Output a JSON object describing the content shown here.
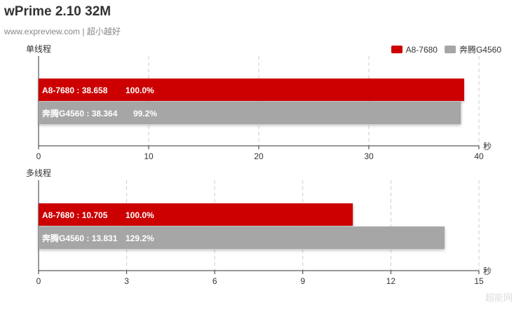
{
  "header": {
    "title": "wPrime 2.10 32M",
    "subtitle": "www.expreview.com | 超小越好"
  },
  "legend": [
    {
      "name": "A8-7680",
      "color": "#cc0000"
    },
    {
      "name": "奔腾G4560",
      "color": "#a6a6a6"
    }
  ],
  "colors": {
    "series1": "#cc0000",
    "series2": "#a6a6a6"
  },
  "chart_data": [
    {
      "type": "bar",
      "orientation": "horizontal",
      "title": "单线程",
      "xlabel": "秒",
      "xlim": [
        0,
        40
      ],
      "xticks": [
        0,
        10,
        20,
        30,
        40
      ],
      "grid": true,
      "series": [
        {
          "name": "A8-7680",
          "values": [
            38.658
          ],
          "label": "A8-7680 : 38.658",
          "percent": "100.0%"
        },
        {
          "name": "奔腾G4560",
          "values": [
            38.364
          ],
          "label": "奔腾G4560 : 38.364",
          "percent": "99.2%"
        }
      ]
    },
    {
      "type": "bar",
      "orientation": "horizontal",
      "title": "多线程",
      "xlabel": "秒",
      "xlim": [
        0,
        15
      ],
      "xticks": [
        0,
        3,
        6,
        9,
        12,
        15
      ],
      "grid": true,
      "series": [
        {
          "name": "A8-7680",
          "values": [
            10.705
          ],
          "label": "A8-7680 : 10.705",
          "percent": "100.0%"
        },
        {
          "name": "奔腾G4560",
          "values": [
            13.831
          ],
          "label": "奔腾G4560 : 13.831",
          "percent": "129.2%"
        }
      ]
    }
  ]
}
